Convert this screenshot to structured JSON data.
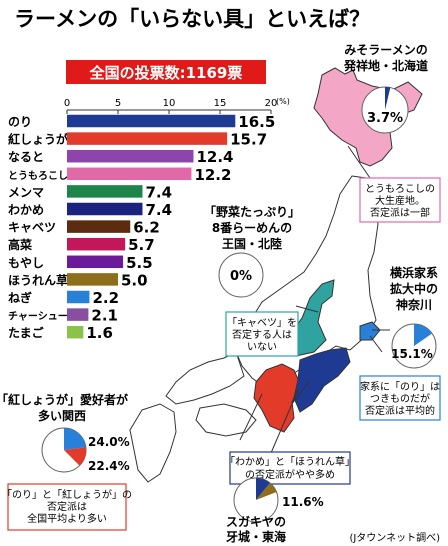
{
  "header": {
    "title": "ラーメンの「いらない具」といえば？",
    "total_votes_label": "全国の投票数:1169票"
  },
  "chart_data": {
    "type": "bar",
    "orientation": "horizontal",
    "unit": "(%)",
    "xlim": [
      0,
      20
    ],
    "ticks": [
      0,
      5,
      10,
      15,
      20
    ],
    "categories": [
      "のり",
      "紅しょうが",
      "なると",
      "とうもろこし",
      "メンマ",
      "わかめ",
      "キャベツ",
      "高菜",
      "もやし",
      "ほうれん草",
      "ねぎ",
      "チャーシュー",
      "たまご"
    ],
    "values": [
      16.5,
      15.7,
      12.4,
      12.2,
      7.4,
      7.4,
      6.2,
      5.7,
      5.5,
      5.0,
      2.2,
      2.1,
      1.6
    ],
    "value_labels": [
      "16.5",
      "15.7",
      "12.4",
      "12.2",
      "7.4",
      "7.4",
      "6.2",
      "5.7",
      "5.5",
      "5.0",
      "2.2",
      "2.1",
      "1.6"
    ],
    "colors": [
      "#1f3a93",
      "#e23b2a",
      "#8e44ad",
      "#e06aa8",
      "#1e8449",
      "#1a237e",
      "#5b2c0f",
      "#c2185b",
      "#6a1b9a",
      "#8d6e1a",
      "#2980d9",
      "#884ea0",
      "#8bc34a"
    ]
  },
  "map": {
    "callouts": {
      "hokkaido": {
        "title_line1": "みそラーメンの",
        "title_line2": "発祥地・北海道",
        "value": "3.7%"
      },
      "corn_note": {
        "line1": "とうもろこしの",
        "line2": "大生産地。",
        "line3": "否定派は一部"
      },
      "hokuriku": {
        "line1": "「野菜たっぷり」",
        "line2": "8番らーめんの",
        "line3": "王国・北陸",
        "value": "0%"
      },
      "kanagawa": {
        "line1": "横浜家系",
        "line2": "拡大中の",
        "line3": "神奈川",
        "value": "15.1%"
      },
      "cabbage_note": {
        "line1": "「キャベツ」を",
        "line2": "否定する人は",
        "line3": "いない"
      },
      "nori_note": {
        "line1": "家系に「のり」は",
        "line2": "つきものだが",
        "line3": "否定派は平均的"
      },
      "kansai": {
        "line1": "「紅しょうが」愛好者が",
        "line2": "多い関西",
        "value_blue": "24.0%",
        "value_red": "22.4%"
      },
      "kansai_note": {
        "line1": "「のり」と「紅しょうが」の",
        "line2": "否定派は",
        "line3": "全国平均より多い"
      },
      "wakame_note": {
        "line1": "「わかめ」と「ほうれん草」",
        "line2": "の否定派がやや多め"
      },
      "tokai": {
        "line1": "スガキヤの",
        "line2": "牙城・東海",
        "value": "11.6%"
      }
    },
    "source": "(Jタウンネット調べ)"
  }
}
